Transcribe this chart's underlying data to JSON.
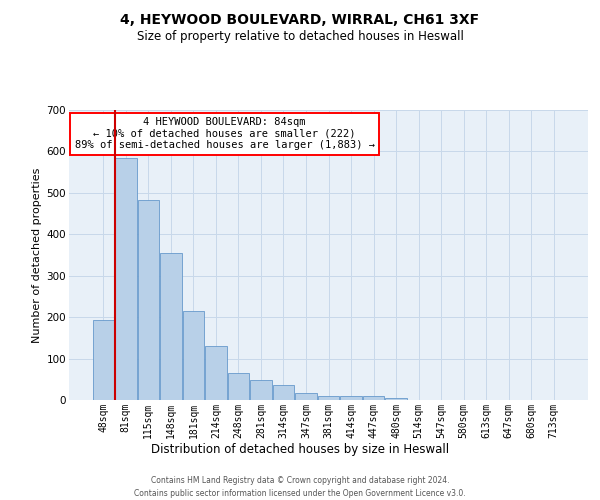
{
  "title": "4, HEYWOOD BOULEVARD, WIRRAL, CH61 3XF",
  "subtitle": "Size of property relative to detached houses in Heswall",
  "xlabel": "Distribution of detached houses by size in Heswall",
  "ylabel": "Number of detached properties",
  "property_label": "4 HEYWOOD BOULEVARD: 84sqm",
  "annotation_line1": "← 10% of detached houses are smaller (222)",
  "annotation_line2": "89% of semi-detached houses are larger (1,883) →",
  "footer_line1": "Contains HM Land Registry data © Crown copyright and database right 2024.",
  "footer_line2": "Contains public sector information licensed under the Open Government Licence v3.0.",
  "bar_labels": [
    "48sqm",
    "81sqm",
    "115sqm",
    "148sqm",
    "181sqm",
    "214sqm",
    "248sqm",
    "281sqm",
    "314sqm",
    "347sqm",
    "381sqm",
    "414sqm",
    "447sqm",
    "480sqm",
    "514sqm",
    "547sqm",
    "580sqm",
    "613sqm",
    "647sqm",
    "680sqm",
    "713sqm"
  ],
  "bar_values": [
    193,
    585,
    483,
    356,
    215,
    130,
    65,
    49,
    37,
    16,
    9,
    9,
    10,
    5,
    0,
    0,
    0,
    0,
    0,
    0,
    0
  ],
  "bar_color": "#b8d0e8",
  "bar_edge_color": "#6699cc",
  "grid_color": "#c8d8ea",
  "background_color": "#e8f0f8",
  "marker_color": "#cc0000",
  "ylim": [
    0,
    700
  ],
  "yticks": [
    0,
    100,
    200,
    300,
    400,
    500,
    600,
    700
  ],
  "title_fontsize": 10,
  "subtitle_fontsize": 8.5,
  "ylabel_fontsize": 8,
  "xlabel_fontsize": 8.5,
  "tick_fontsize": 7,
  "footer_fontsize": 5.5,
  "annot_fontsize": 7.5
}
